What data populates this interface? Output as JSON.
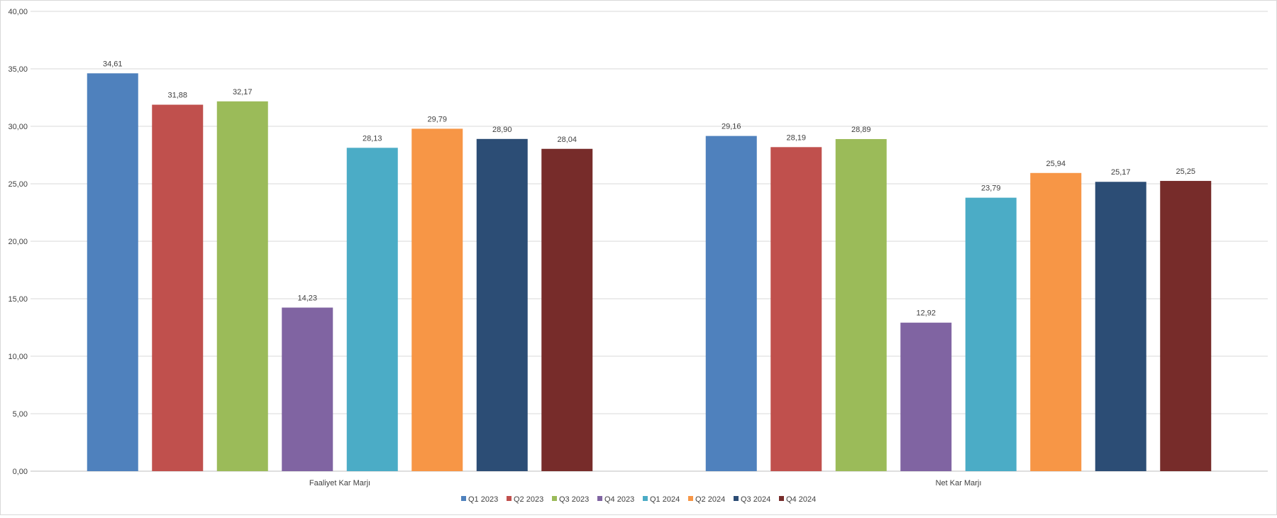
{
  "chart_data": {
    "type": "bar",
    "categories": [
      "Faaliyet Kar Marjı",
      "Net Kar Marjı"
    ],
    "series": [
      {
        "name": "Q1 2023",
        "values": [
          34.61,
          29.16
        ],
        "color": "#4F81BD"
      },
      {
        "name": "Q2 2023",
        "values": [
          31.88,
          28.19
        ],
        "color": "#C0504D"
      },
      {
        "name": "Q3 2023",
        "values": [
          32.17,
          28.89
        ],
        "color": "#9BBB59"
      },
      {
        "name": "Q4 2023",
        "values": [
          14.23,
          12.92
        ],
        "color": "#8064A2"
      },
      {
        "name": "Q1 2024",
        "values": [
          28.13,
          23.79
        ],
        "color": "#4BACC6"
      },
      {
        "name": "Q2 2024",
        "values": [
          29.79,
          25.94
        ],
        "color": "#F79646"
      },
      {
        "name": "Q3 2024",
        "values": [
          28.9,
          25.17
        ],
        "color": "#2C4D75"
      },
      {
        "name": "Q4 2024",
        "values": [
          28.04,
          25.25
        ],
        "color": "#772C2A"
      }
    ],
    "data_labels": [
      [
        "34,61",
        "29,16"
      ],
      [
        "31,88",
        "28,19"
      ],
      [
        "32,17",
        "28,89"
      ],
      [
        "14,23",
        "12,92"
      ],
      [
        "28,13",
        "23,79"
      ],
      [
        "29,79",
        "25,94"
      ],
      [
        "28,90",
        "25,17"
      ],
      [
        "28,04",
        "25,25"
      ]
    ],
    "y_ticks": [
      0,
      5,
      10,
      15,
      20,
      25,
      30,
      35,
      40
    ],
    "y_tick_labels": [
      "0,00",
      "5,00",
      "10,00",
      "15,00",
      "20,00",
      "25,00",
      "30,00",
      "35,00",
      "40,00"
    ],
    "ylim": [
      0,
      40
    ],
    "grid": true,
    "legend_position": "bottom",
    "title": "",
    "xlabel": "",
    "ylabel": ""
  }
}
